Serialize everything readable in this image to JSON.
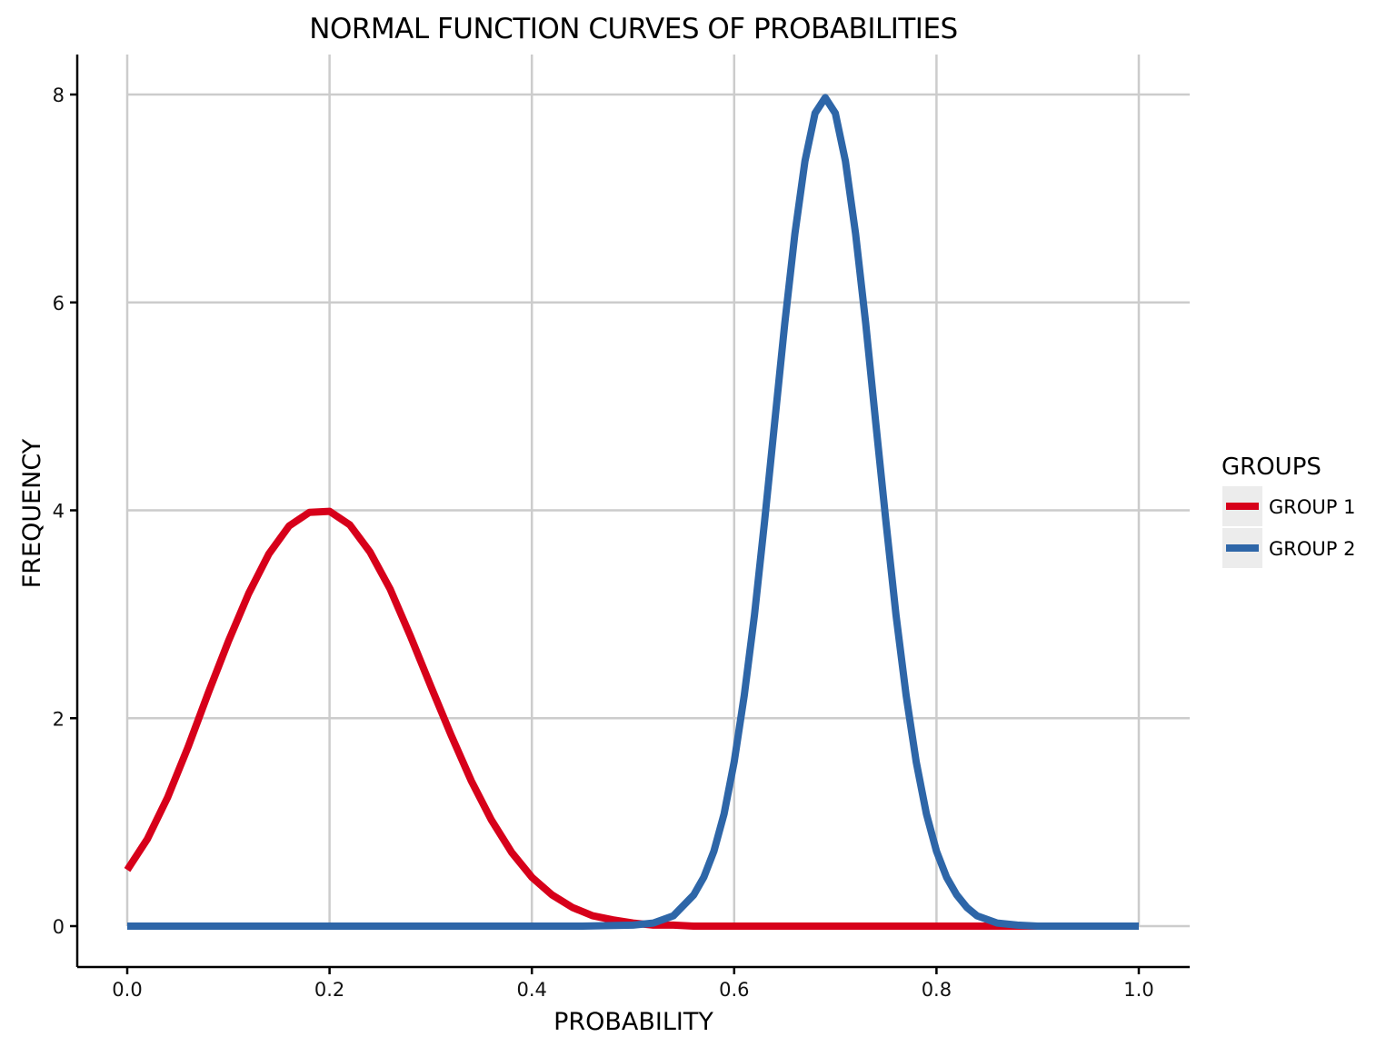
{
  "chart_data": {
    "type": "line",
    "title": "NORMAL FUNCTION CURVES OF PROBABILITIES",
    "xlabel": "PROBABILITY",
    "ylabel": "FREQUENCY",
    "xlim": [
      0,
      1
    ],
    "ylim": [
      0,
      8
    ],
    "x_ticks": [
      "0.0",
      "0.2",
      "0.4",
      "0.6",
      "0.8",
      "1.0"
    ],
    "y_ticks": [
      "0",
      "2",
      "4",
      "6",
      "8"
    ],
    "grid": true,
    "legend": {
      "title": "GROUPS",
      "placement": "right"
    },
    "series": [
      {
        "name": "GROUP 1",
        "color": "#d7001a",
        "x": [
          0.0,
          0.02,
          0.04,
          0.06,
          0.08,
          0.1,
          0.12,
          0.14,
          0.16,
          0.18,
          0.2,
          0.22,
          0.24,
          0.26,
          0.28,
          0.3,
          0.32,
          0.34,
          0.36,
          0.38,
          0.4,
          0.42,
          0.44,
          0.46,
          0.48,
          0.5,
          0.52,
          0.54,
          0.56,
          0.58,
          0.6,
          0.65,
          0.7,
          0.75,
          0.8,
          0.85,
          0.9,
          0.95,
          1.0
        ],
        "values": [
          0.54,
          0.84,
          1.24,
          1.72,
          2.24,
          2.74,
          3.2,
          3.58,
          3.85,
          3.98,
          3.99,
          3.86,
          3.6,
          3.24,
          2.79,
          2.31,
          1.84,
          1.4,
          1.02,
          0.71,
          0.47,
          0.3,
          0.18,
          0.1,
          0.06,
          0.03,
          0.01,
          0.01,
          0.0,
          0.0,
          0.0,
          0.0,
          0.0,
          0.0,
          0.0,
          0.0,
          0.0,
          0.0,
          0.0
        ]
      },
      {
        "name": "GROUP 2",
        "color": "#2e66a8",
        "x": [
          0.0,
          0.1,
          0.2,
          0.3,
          0.4,
          0.45,
          0.5,
          0.52,
          0.54,
          0.56,
          0.57,
          0.58,
          0.59,
          0.6,
          0.61,
          0.62,
          0.63,
          0.64,
          0.65,
          0.66,
          0.67,
          0.68,
          0.69,
          0.7,
          0.71,
          0.72,
          0.73,
          0.74,
          0.75,
          0.76,
          0.77,
          0.78,
          0.79,
          0.8,
          0.81,
          0.82,
          0.83,
          0.84,
          0.86,
          0.88,
          0.9,
          0.95,
          1.0
        ],
        "values": [
          0.0,
          0.0,
          0.0,
          0.0,
          0.0,
          0.0,
          0.01,
          0.03,
          0.1,
          0.3,
          0.47,
          0.72,
          1.08,
          1.58,
          2.22,
          2.99,
          3.89,
          4.84,
          5.8,
          6.66,
          7.36,
          7.82,
          7.97,
          7.82,
          7.36,
          6.66,
          5.8,
          4.84,
          3.89,
          2.99,
          2.22,
          1.58,
          1.08,
          0.72,
          0.47,
          0.3,
          0.18,
          0.1,
          0.03,
          0.01,
          0.0,
          0.0,
          0.0
        ]
      }
    ]
  }
}
